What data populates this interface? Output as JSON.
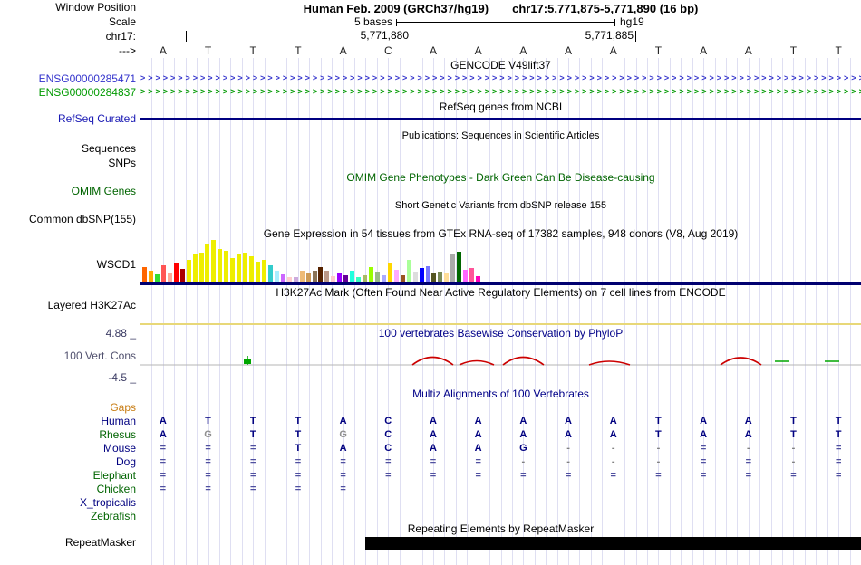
{
  "header": {
    "assembly_title": "Human Feb. 2009 (GRCh37/hg19)",
    "position_title": "chr17:5,771,875-5,771,890 (16 bp)",
    "scale_bases": "5 bases",
    "scale_genome": "hg19",
    "coord_labels": [
      "5,771,880",
      "5,771,885"
    ],
    "bases": [
      "A",
      "T",
      "T",
      "T",
      "A",
      "C",
      "A",
      "A",
      "A",
      "A",
      "A",
      "T",
      "A",
      "A",
      "T",
      "T"
    ]
  },
  "left_labels": [
    {
      "id": "window_position",
      "text": "Window Position",
      "color": "#000000"
    },
    {
      "id": "scale",
      "text": "Scale",
      "color": "#000000"
    },
    {
      "id": "chrom",
      "text": "chr17:",
      "color": "#000000"
    },
    {
      "id": "strand",
      "text": "--->",
      "color": "#000000"
    },
    {
      "id": "refseq_curated",
      "text": "RefSeq Curated",
      "color": "#1a1ab4"
    },
    {
      "id": "sequences",
      "text": "Sequences",
      "color": "#000000"
    },
    {
      "id": "snps",
      "text": "SNPs",
      "color": "#000000"
    },
    {
      "id": "omim_genes",
      "text": "OMIM Genes",
      "color": "#006400"
    },
    {
      "id": "common_dbsnp",
      "text": "Common dbSNP(155)",
      "color": "#000000"
    },
    {
      "id": "wscd1",
      "text": "WSCD1",
      "color": "#000000"
    },
    {
      "id": "layered_h3k27ac",
      "text": "Layered H3K27Ac",
      "color": "#000000"
    },
    {
      "id": "phylop_max",
      "text": "4.88 _",
      "color": "#3c3c64"
    },
    {
      "id": "vert_cons",
      "text": "100 Vert. Cons",
      "color": "#50506e"
    },
    {
      "id": "phylop_min",
      "text": "-4.5 _",
      "color": "#3c3c64"
    },
    {
      "id": "gaps",
      "text": "Gaps",
      "color": "#c87d14"
    },
    {
      "id": "repeatmasker",
      "text": "RepeatMasker",
      "color": "#000000"
    }
  ],
  "center_titles": [
    {
      "id": "gencode",
      "text": "GENCODE V49lift37",
      "color": "#000000"
    },
    {
      "id": "refseq",
      "text": "RefSeq genes from NCBI",
      "color": "#000000"
    },
    {
      "id": "publications",
      "text": "Publications: Sequences in Scientific Articles",
      "color": "#000000"
    },
    {
      "id": "omim",
      "text": "OMIM Gene Phenotypes - Dark Green Can Be Disease-causing",
      "color": "#006400"
    },
    {
      "id": "dbsnp",
      "text": "Short Genetic Variants from dbSNP release 155",
      "color": "#000000"
    },
    {
      "id": "gtex",
      "text": "Gene Expression in 54 tissues from GTEx RNA-seq of 17382 samples, 948 donors (V8, Aug 2019)",
      "color": "#000000"
    },
    {
      "id": "h3k27ac",
      "text": "H3K27Ac Mark (Often Found Near Active Regulatory Elements) on 7 cell lines from ENCODE",
      "color": "#000000"
    },
    {
      "id": "phylop",
      "text": "100 vertebrates Basewise Conservation by PhyloP",
      "color": "#000088"
    },
    {
      "id": "multiz",
      "text": "Multiz Alignments of 100 Vertebrates",
      "color": "#000088"
    },
    {
      "id": "repeat",
      "text": "Repeating Elements by RepeatMasker",
      "color": "#000000"
    }
  ],
  "tracks": {
    "gencode": {
      "genes": [
        {
          "label": "ENSG00000285471",
          "color": "#3333cc"
        },
        {
          "label": "ENSG00000284837",
          "color": "#009a00"
        }
      ]
    },
    "refseq": {
      "line_color": "#000080"
    },
    "gtex": {
      "baseline_color": "#000070",
      "bars": [
        [
          16,
          "#FF6600"
        ],
        [
          12,
          "#FFAA00"
        ],
        [
          8,
          "#33DD33"
        ],
        [
          18,
          "#FF5555"
        ],
        [
          10,
          "#FFAA99"
        ],
        [
          20,
          "#FF0000"
        ],
        [
          14,
          "#AA0000"
        ],
        [
          24,
          "#EEEE00"
        ],
        [
          30,
          "#EEEE00"
        ],
        [
          32,
          "#EEEE00"
        ],
        [
          42,
          "#EEEE00"
        ],
        [
          46,
          "#EEEE00"
        ],
        [
          36,
          "#EEEE00"
        ],
        [
          34,
          "#EEEE00"
        ],
        [
          26,
          "#EEEE00"
        ],
        [
          30,
          "#EEEE00"
        ],
        [
          32,
          "#EEEE00"
        ],
        [
          28,
          "#EEEE00"
        ],
        [
          22,
          "#EEEE00"
        ],
        [
          24,
          "#EEEE00"
        ],
        [
          18,
          "#33CCCC"
        ],
        [
          12,
          "#AAEEFF"
        ],
        [
          8,
          "#CC66FF"
        ],
        [
          5,
          "#FFCCCC"
        ],
        [
          5,
          "#CCAADD"
        ],
        [
          12,
          "#EEBB77"
        ],
        [
          10,
          "#CC9955"
        ],
        [
          12,
          "#8B7355"
        ],
        [
          16,
          "#552200"
        ],
        [
          12,
          "#BB9988"
        ],
        [
          6,
          "#FFCCCC"
        ],
        [
          10,
          "#9900FF"
        ],
        [
          7,
          "#660099"
        ],
        [
          12,
          "#22FFDD"
        ],
        [
          5,
          "#33FFC2"
        ],
        [
          7,
          "#AABB66"
        ],
        [
          16,
          "#99FF00"
        ],
        [
          11,
          "#99BB88"
        ],
        [
          7,
          "#AAAAFF"
        ],
        [
          20,
          "#FFD700"
        ],
        [
          13,
          "#FFAAFF"
        ],
        [
          7,
          "#995522"
        ],
        [
          24,
          "#AAFF99"
        ],
        [
          11,
          "#DDDDDD"
        ],
        [
          15,
          "#0000FF"
        ],
        [
          17,
          "#7777FF"
        ],
        [
          9,
          "#555522"
        ],
        [
          11,
          "#778855"
        ],
        [
          9,
          "#FFDD99"
        ],
        [
          30,
          "#AAAAAA"
        ],
        [
          33,
          "#006600"
        ],
        [
          13,
          "#FF66FF"
        ],
        [
          15,
          "#FF5599"
        ],
        [
          6,
          "#FF00BB"
        ]
      ]
    },
    "h3k27ac": {
      "signal_color": "#e8d878"
    },
    "phylop": {
      "colors": {
        "red": "#cc0000",
        "green": "#00a600",
        "baseline": "#b4b4b4"
      }
    },
    "multiz": {
      "species": [
        {
          "name": "Human",
          "color": "#000080",
          "cells": "ATTTACAAAAATAATT",
          "gray": []
        },
        {
          "name": "Rhesus",
          "color": "#006400",
          "cells": "AGTTGCAAAAATAATT",
          "gray": [
            1,
            4
          ]
        },
        {
          "name": "Mouse",
          "color": "#000080",
          "cells": "===TACAAG---=--=",
          "gray": []
        },
        {
          "name": "Dog",
          "color": "#000080",
          "cells": "========----==-=",
          "gray": []
        },
        {
          "name": "Elephant",
          "color": "#006400",
          "cells": "================",
          "gray": []
        },
        {
          "name": "Chicken",
          "color": "#006400",
          "cells": "=====           ",
          "gray": []
        },
        {
          "name": "X_tropicalis",
          "color": "#000080",
          "cells": "                ",
          "gray": []
        },
        {
          "name": "Zebrafish",
          "color": "#006400",
          "cells": "                ",
          "gray": []
        }
      ]
    },
    "repeatmasker": {
      "box_color": "#000000"
    }
  }
}
